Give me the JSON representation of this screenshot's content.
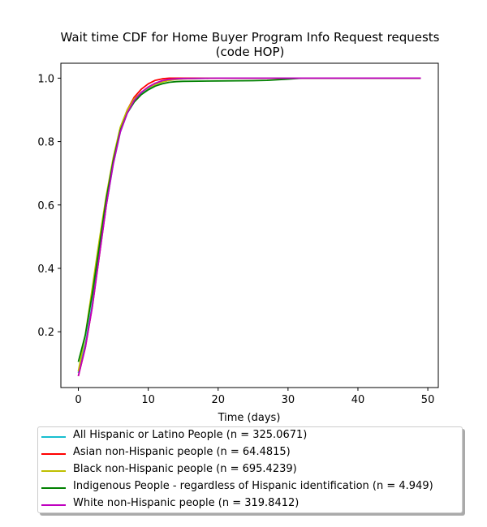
{
  "chart_data": {
    "type": "line",
    "title_lines": [
      "Wait time CDF for Home Buyer Program Info Request  requests",
      "(code HOP)"
    ],
    "xlabel": "Time (days)",
    "ylabel": "",
    "xlim": [
      -2.5,
      51.5
    ],
    "ylim": [
      0.024,
      1.047
    ],
    "xticks": [
      0,
      10,
      20,
      30,
      40,
      50
    ],
    "yticks": [
      0.2,
      0.4,
      0.6,
      0.8,
      1.0
    ],
    "grid": false,
    "legend_position": "below",
    "series": [
      {
        "name": "All Hispanic or Latino People (n = 325.0671)",
        "color": "#17becf",
        "x": [
          0,
          1,
          2,
          3,
          4,
          5,
          6,
          7,
          8,
          9,
          10,
          11,
          12,
          13,
          14,
          15,
          20,
          25,
          30,
          35,
          40,
          45,
          49
        ],
        "y": [
          0.07,
          0.16,
          0.29,
          0.45,
          0.6,
          0.73,
          0.83,
          0.89,
          0.925,
          0.95,
          0.967,
          0.98,
          0.988,
          0.993,
          0.996,
          0.998,
          1.0,
          1.0,
          1.0,
          1.0,
          1.0,
          1.0,
          1.0
        ]
      },
      {
        "name": "Asian non-Hispanic people (n = 64.4815)",
        "color": "#ff0000",
        "x": [
          0,
          1,
          2,
          3,
          4,
          5,
          6,
          7,
          8,
          9,
          10,
          11,
          12,
          13,
          14,
          15,
          20,
          25,
          30,
          35,
          40,
          45,
          49
        ],
        "y": [
          0.06,
          0.15,
          0.28,
          0.44,
          0.6,
          0.74,
          0.84,
          0.9,
          0.94,
          0.965,
          0.982,
          0.993,
          0.998,
          1.0,
          1.0,
          1.0,
          1.0,
          1.0,
          1.0,
          1.0,
          1.0,
          1.0,
          1.0
        ]
      },
      {
        "name": "Black non-Hispanic people (n = 695.4239)",
        "color": "#bfbf00",
        "x": [
          0,
          1,
          2,
          3,
          4,
          5,
          6,
          7,
          8,
          9,
          10,
          11,
          12,
          13,
          14,
          15,
          20,
          25,
          30,
          35,
          40,
          45,
          49
        ],
        "y": [
          0.075,
          0.19,
          0.34,
          0.49,
          0.63,
          0.75,
          0.845,
          0.9,
          0.935,
          0.955,
          0.97,
          0.98,
          0.988,
          0.993,
          0.996,
          0.998,
          1.0,
          1.0,
          1.0,
          1.0,
          1.0,
          1.0,
          1.0
        ]
      },
      {
        "name": "Indigenous People - regardless of Hispanic identification (n = 4.949)",
        "color": "#008000",
        "x": [
          0,
          1,
          2,
          3,
          4,
          5,
          6,
          7,
          8,
          9,
          10,
          11,
          12,
          13,
          14,
          15,
          20,
          25,
          27,
          30,
          32,
          35,
          40,
          45,
          49
        ],
        "y": [
          0.105,
          0.19,
          0.32,
          0.47,
          0.62,
          0.74,
          0.835,
          0.89,
          0.925,
          0.948,
          0.963,
          0.975,
          0.982,
          0.987,
          0.989,
          0.99,
          0.991,
          0.992,
          0.993,
          0.997,
          1.0,
          1.0,
          1.0,
          1.0,
          1.0
        ]
      },
      {
        "name": "White non-Hispanic people (n = 319.8412)",
        "color": "#bf00bf",
        "x": [
          0,
          1,
          2,
          3,
          4,
          5,
          6,
          7,
          8,
          9,
          10,
          11,
          12,
          13,
          14,
          15,
          20,
          25,
          30,
          35,
          40,
          45,
          49
        ],
        "y": [
          0.06,
          0.15,
          0.28,
          0.44,
          0.6,
          0.73,
          0.83,
          0.89,
          0.93,
          0.955,
          0.972,
          0.984,
          0.992,
          0.996,
          0.998,
          0.999,
          1.0,
          1.0,
          1.0,
          1.0,
          1.0,
          1.0,
          1.0
        ]
      }
    ]
  }
}
